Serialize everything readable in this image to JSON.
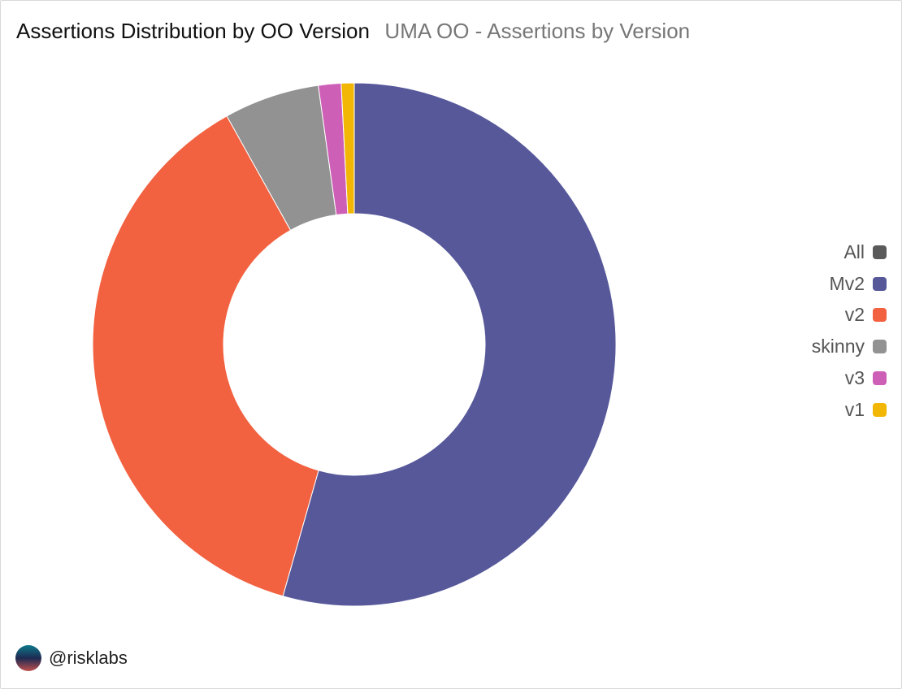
{
  "header": {
    "title": "Assertions Distribution by OO Version",
    "subtitle": "UMA OO - Assertions by Version"
  },
  "chart_data": {
    "type": "pie",
    "variant": "donut",
    "title": "Assertions Distribution by OO Version",
    "subtitle": "UMA OO - Assertions by Version",
    "legend_position": "right",
    "legend": [
      {
        "name": "All",
        "color": "#5a5a5a"
      },
      {
        "name": "Mv2",
        "color": "#56589a"
      },
      {
        "name": "v2",
        "color": "#f26140"
      },
      {
        "name": "skinny",
        "color": "#929292"
      },
      {
        "name": "v3",
        "color": "#cd5fb6"
      },
      {
        "name": "v1",
        "color": "#f1b704"
      }
    ],
    "slices": [
      {
        "name": "Mv2",
        "value": 54.4,
        "color": "#56589a"
      },
      {
        "name": "v2",
        "value": 37.5,
        "color": "#f26140"
      },
      {
        "name": "skinny",
        "value": 5.9,
        "color": "#929292"
      },
      {
        "name": "v3",
        "value": 1.4,
        "color": "#cd5fb6"
      },
      {
        "name": "v1",
        "value": 0.8,
        "color": "#f1b704"
      }
    ]
  },
  "footer": {
    "handle": "@risklabs"
  }
}
